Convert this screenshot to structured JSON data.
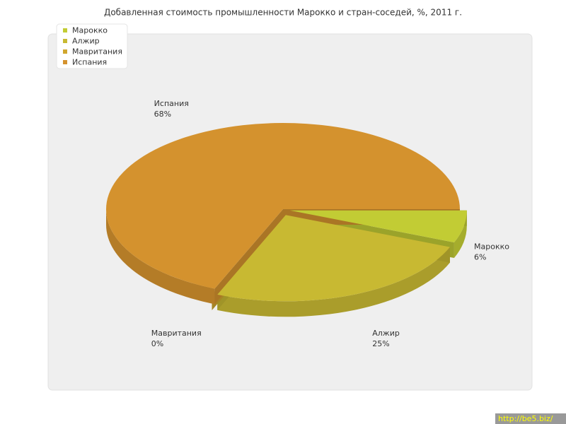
{
  "chart_data": {
    "type": "pie3d",
    "title": "Добавленная стоимость промышленности Марокко и стран-соседей, %, 2011 г.",
    "categories": [
      "Марокко",
      "Алжир",
      "Мавритания",
      "Испания"
    ],
    "values": [
      6,
      25,
      0,
      68
    ],
    "value_labels": [
      "6%",
      "25%",
      "0%",
      "68%"
    ],
    "colors": [
      "#c2cc34",
      "#c8b932",
      "#d0a62e",
      "#d4922e"
    ],
    "legend": "top-left"
  },
  "watermark": "http://be5.biz/"
}
